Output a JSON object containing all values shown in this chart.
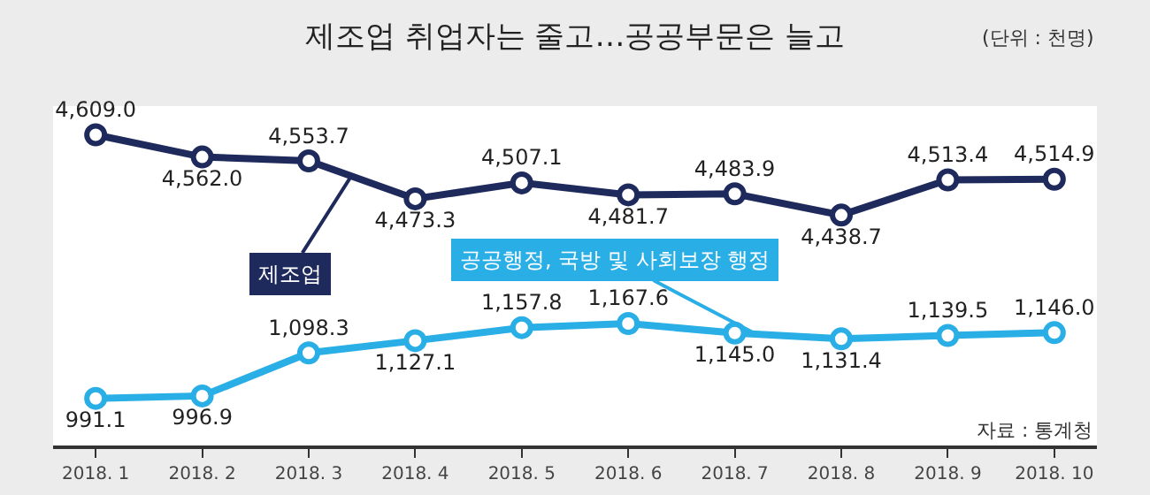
{
  "chart_data": {
    "type": "line",
    "title": "제조업 취업자는 줄고…공공부문은 늘고",
    "annotations": [
      "(단위 : 천명)",
      "자료 : 통계청"
    ],
    "categories": [
      "2018. 1",
      "2018. 2",
      "2018. 3",
      "2018. 4",
      "2018. 5",
      "2018. 6",
      "2018. 7",
      "2018. 8",
      "2018. 9",
      "2018. 10"
    ],
    "series": [
      {
        "name": "제조업",
        "color": "#1f2a5c",
        "values": [
          4609.0,
          4562.0,
          4553.7,
          4473.3,
          4507.1,
          4481.7,
          4483.9,
          4438.7,
          4513.4,
          4514.9
        ],
        "value_labels": [
          "4,609.0",
          "4,562.0",
          "4,553.7",
          "4,473.3",
          "4,507.1",
          "4,481.7",
          "4,483.9",
          "4,438.7",
          "4,513.4",
          "4,514.9"
        ]
      },
      {
        "name": "공공행정, 국방 및 사회보장 행정",
        "color": "#29aee6",
        "axis": "y2",
        "values": [
          991.1,
          996.9,
          1098.3,
          1127.1,
          1157.8,
          1167.6,
          1145.0,
          1131.4,
          1139.5,
          1146.0
        ],
        "value_labels": [
          "991.1",
          "996.9",
          "1,098.3",
          "1,127.1",
          "1,157.8",
          "1,167.6",
          "1,145.0",
          "1,131.4",
          "1,139.5",
          "1,146.0"
        ]
      }
    ],
    "ylim": [
      3950,
      4670
    ],
    "y2lim": [
      880,
      1680
    ],
    "tick_labels": "x",
    "grid": false,
    "legend": false,
    "marker": "circle",
    "line_style": "solid"
  }
}
